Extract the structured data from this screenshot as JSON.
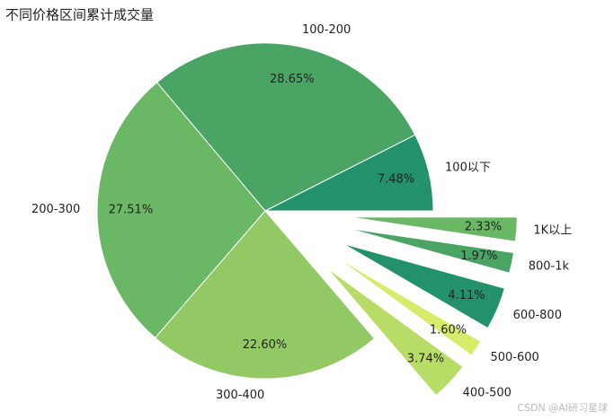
{
  "chart_data": {
    "type": "pie",
    "title": "不同价格区间累计成交量",
    "categories": [
      "100以下",
      "100-200",
      "200-300",
      "300-400",
      "400-500",
      "500-600",
      "600-800",
      "800-1k",
      "1K以上"
    ],
    "values": [
      7.48,
      28.65,
      27.51,
      22.6,
      3.74,
      1.6,
      4.11,
      1.97,
      2.33
    ],
    "value_labels": [
      "7.48%",
      "28.65%",
      "27.51%",
      "22.60%",
      "3.74%",
      "1.60%",
      "4.11%",
      "1.97%",
      "2.33%"
    ],
    "colors": [
      "#23916a",
      "#4aa564",
      "#6ab865",
      "#93c965",
      "#b8dd67",
      "#d8eb6b",
      "#23916a",
      "#4aa564",
      "#6ab865"
    ],
    "explode": [
      0,
      0,
      0,
      0,
      0.5,
      0.5,
      0.5,
      0.5,
      0.5
    ],
    "watermark": "CSDN @AI研习星球"
  }
}
